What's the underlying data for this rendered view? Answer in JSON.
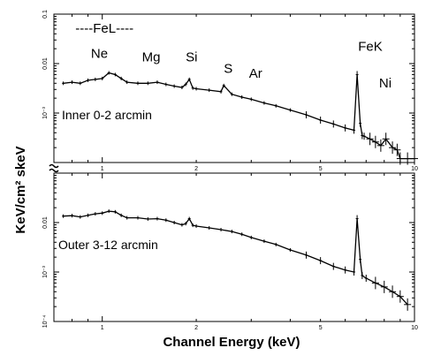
{
  "chart_data": [
    {
      "type": "line",
      "panel": "top",
      "panel_label": "Inner 0-2 arcmin",
      "xlabel": "Channel Energy (keV)",
      "ylabel": "KeV/cm² skeV",
      "xscale": "log",
      "yscale": "log",
      "xlim": [
        0.7,
        10
      ],
      "ylim": [
        0.0001,
        0.1
      ],
      "xticks": [
        1,
        2,
        5,
        10
      ],
      "xtick_labels": [
        "1",
        "2",
        "5",
        "10"
      ],
      "yticks": [
        0.001,
        0.01,
        0.1
      ],
      "ytick_labels": [
        "10⁻³",
        "0.01",
        "0.1"
      ],
      "annotations": [
        {
          "text": "----FeL----",
          "x": 0.82,
          "y": 0.042
        },
        {
          "text": "Ne",
          "x": 0.92,
          "y": 0.013
        },
        {
          "text": "Mg",
          "x": 1.34,
          "y": 0.011
        },
        {
          "text": "Si",
          "x": 1.85,
          "y": 0.011
        },
        {
          "text": "S",
          "x": 2.45,
          "y": 0.0065
        },
        {
          "text": "Ar",
          "x": 2.95,
          "y": 0.0052
        },
        {
          "text": "FeK",
          "x": 6.6,
          "y": 0.018
        },
        {
          "text": "Ni",
          "x": 7.7,
          "y": 0.0033
        }
      ],
      "series": [
        {
          "x": [
            0.75,
            0.8,
            0.85,
            0.9,
            0.95,
            1.0,
            1.05,
            1.1,
            1.15,
            1.2,
            1.3,
            1.4,
            1.5,
            1.6,
            1.7,
            1.8,
            1.85,
            1.9,
            1.95,
            2.0,
            2.2,
            2.4,
            2.45,
            2.6,
            2.8,
            3.0,
            3.3,
            3.6,
            4.0,
            4.5,
            5.0,
            5.5,
            6.0,
            6.4,
            6.55,
            6.7,
            6.8,
            6.9,
            7.2,
            7.5,
            7.8,
            8.1,
            8.5,
            8.8,
            9.0,
            9.5,
            10.0
          ],
          "y": [
            0.004,
            0.0042,
            0.004,
            0.0046,
            0.0048,
            0.005,
            0.0065,
            0.006,
            0.005,
            0.0042,
            0.004,
            0.004,
            0.0042,
            0.0038,
            0.0035,
            0.0033,
            0.0038,
            0.0048,
            0.0032,
            0.0031,
            0.0029,
            0.0027,
            0.0036,
            0.0024,
            0.0021,
            0.0019,
            0.0016,
            0.0014,
            0.00115,
            0.00092,
            0.00072,
            0.0006,
            0.0005,
            0.00045,
            0.006,
            0.00062,
            0.00035,
            0.00034,
            0.0003,
            0.00026,
            0.00022,
            0.0003,
            0.0002,
            0.00018,
            0.00012,
            0.00012,
            0.00012
          ]
        }
      ]
    },
    {
      "type": "line",
      "panel": "bottom",
      "panel_label": "Outer 3-12 arcmin",
      "xlabel": "Channel Energy (keV)",
      "ylabel": "KeV/cm² skeV",
      "xscale": "log",
      "yscale": "log",
      "xlim": [
        0.7,
        10
      ],
      "ylim": [
        0.0001,
        0.1
      ],
      "xticks": [
        1,
        2,
        5,
        10
      ],
      "xtick_labels": [
        "1",
        "2",
        "5",
        "10"
      ],
      "yticks": [
        0.0001,
        0.001,
        0.01
      ],
      "ytick_labels": [
        "10⁻⁴",
        "10⁻³",
        "0.01"
      ],
      "series": [
        {
          "x": [
            0.75,
            0.8,
            0.85,
            0.9,
            0.95,
            1.0,
            1.05,
            1.1,
            1.15,
            1.2,
            1.3,
            1.4,
            1.5,
            1.6,
            1.7,
            1.8,
            1.85,
            1.9,
            1.95,
            2.0,
            2.2,
            2.4,
            2.6,
            2.8,
            3.0,
            3.3,
            3.6,
            4.0,
            4.5,
            5.0,
            5.5,
            6.0,
            6.4,
            6.55,
            6.7,
            6.8,
            7.0,
            7.5,
            8.0,
            8.5,
            9.0,
            9.5
          ],
          "y": [
            0.0135,
            0.0138,
            0.013,
            0.014,
            0.015,
            0.0155,
            0.017,
            0.0165,
            0.014,
            0.0125,
            0.0125,
            0.0118,
            0.012,
            0.0112,
            0.01,
            0.009,
            0.0095,
            0.012,
            0.0088,
            0.0085,
            0.0078,
            0.0072,
            0.0066,
            0.0058,
            0.005,
            0.0042,
            0.0036,
            0.0028,
            0.0022,
            0.0017,
            0.0013,
            0.0011,
            0.001,
            0.012,
            0.0018,
            0.00085,
            0.00075,
            0.0006,
            0.0005,
            0.0004,
            0.00032,
            0.00022
          ]
        }
      ]
    }
  ]
}
